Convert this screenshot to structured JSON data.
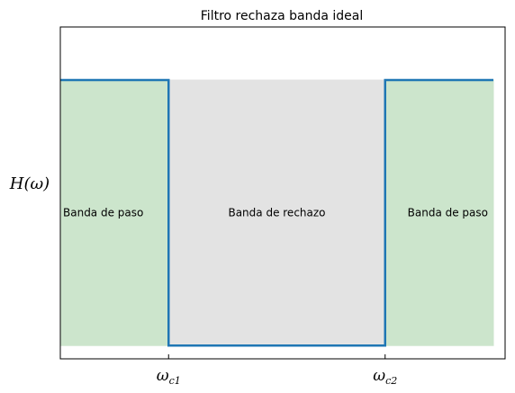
{
  "chart_data": {
    "type": "line",
    "title": "Filtro rechaza banda ideal",
    "ylabel": "H(ω)",
    "xlabel": "",
    "xlim": [
      0,
      4
    ],
    "ylim": [
      -0.05,
      1.2
    ],
    "x_ticks": [
      {
        "value": 1,
        "label": "ωc1"
      },
      {
        "value": 3,
        "label": "ωc2"
      }
    ],
    "series": [
      {
        "x": [
          0,
          1,
          1,
          3,
          3,
          4
        ],
        "y": [
          1,
          1,
          0,
          0,
          1,
          1
        ],
        "color": "#1f77b4"
      }
    ],
    "regions": [
      {
        "x_start": 0,
        "x_end": 1,
        "label": "Banda de paso",
        "color": "#cce5cc",
        "label_align": "left"
      },
      {
        "x_start": 1,
        "x_end": 3,
        "label": "Banda de rechazo",
        "color": "#e3e3e3",
        "label_align": "center"
      },
      {
        "x_start": 3,
        "x_end": 4,
        "label": "Banda de paso",
        "color": "#cce5cc",
        "label_align": "right"
      }
    ],
    "grid": false,
    "legend": false
  }
}
